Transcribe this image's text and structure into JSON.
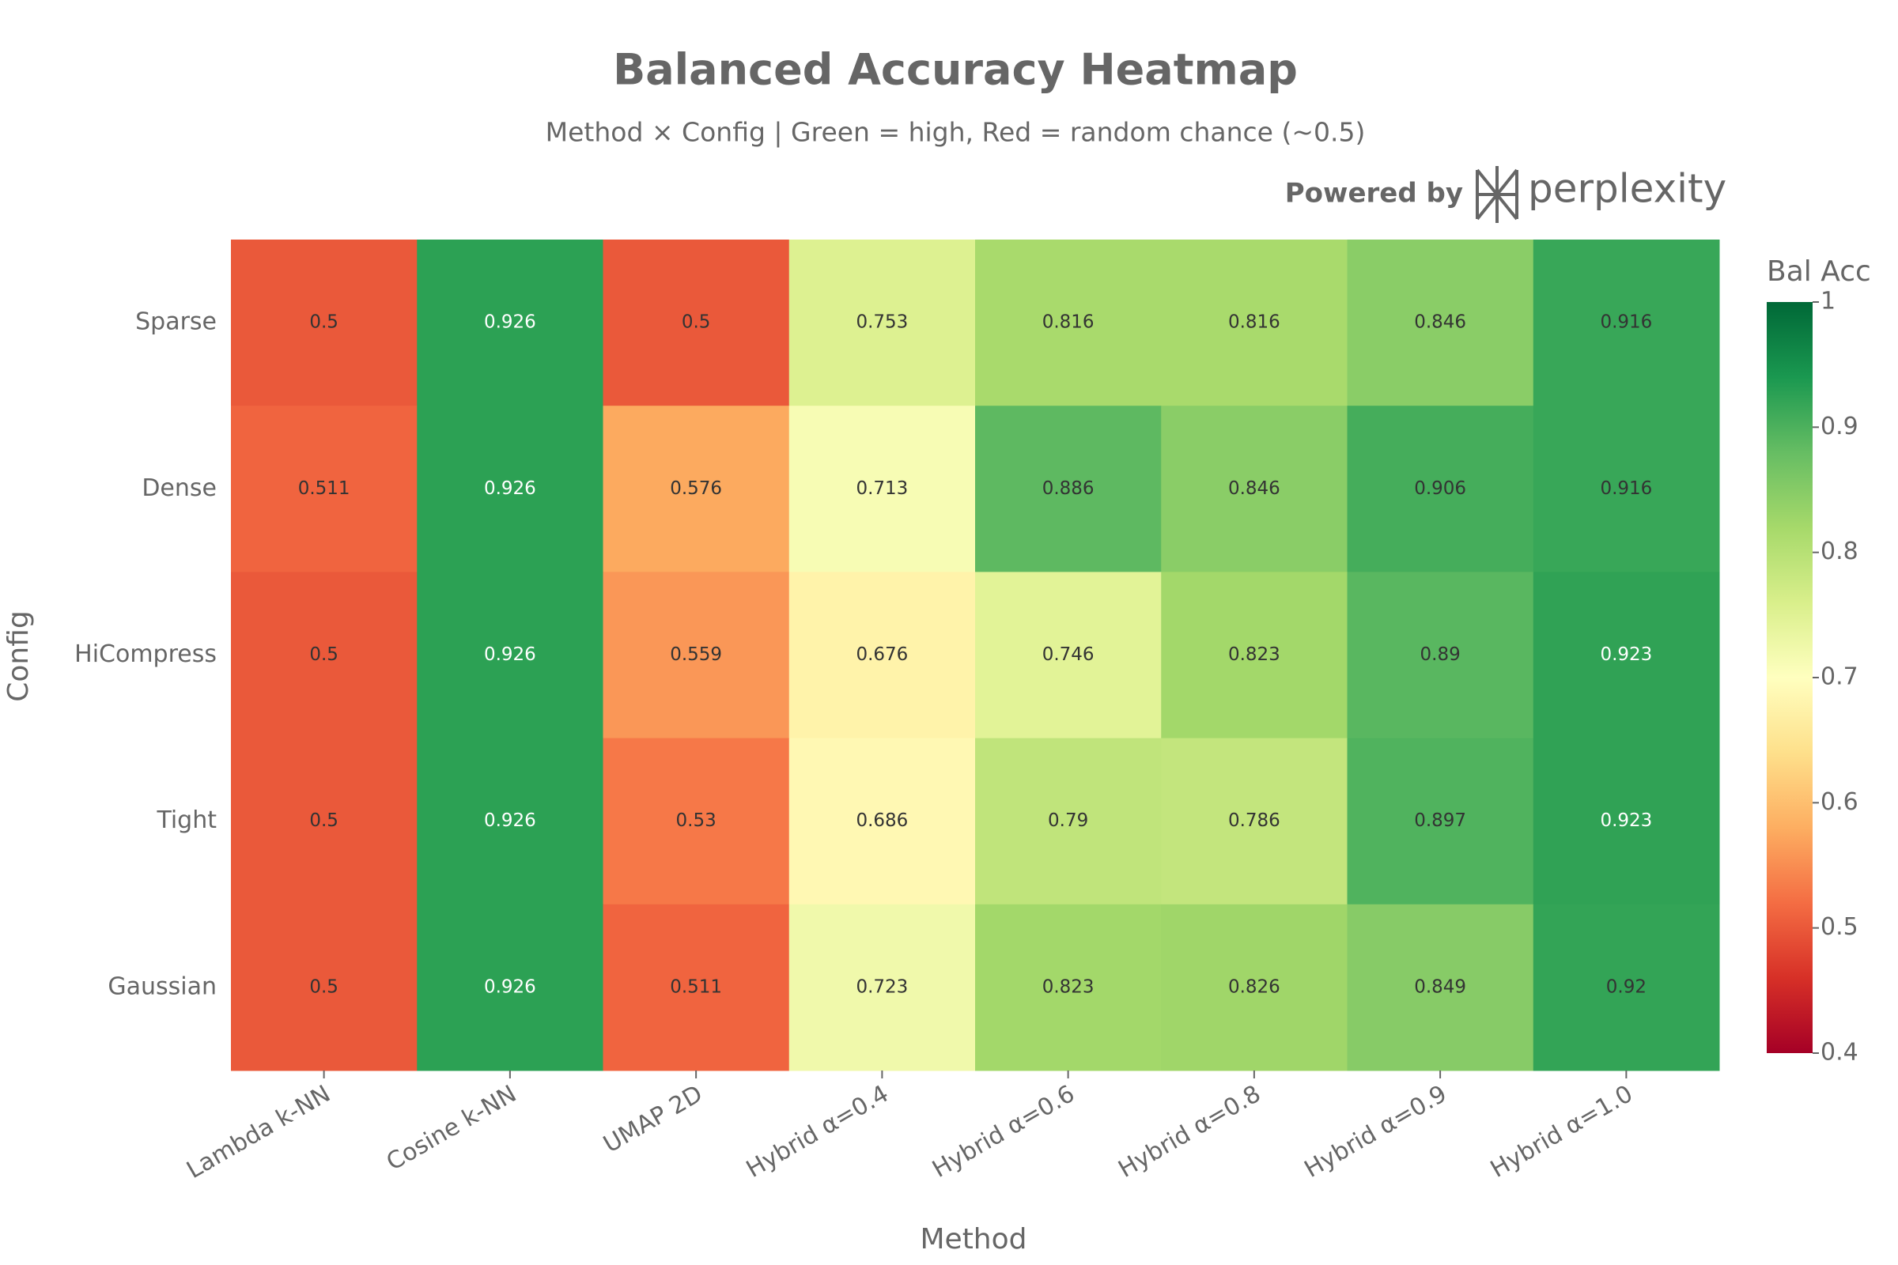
{
  "chart_data": {
    "type": "heatmap",
    "title": "Balanced Accuracy Heatmap",
    "subtitle": "Method × Config | Green = high, Red = random chance (~0.5)",
    "watermark": {
      "prefix": "Powered by",
      "brand": "perplexity"
    },
    "x_label": "Method",
    "y_label": "Config",
    "x": [
      "Lambda k-NN",
      "Cosine k-NN",
      "UMAP 2D",
      "Hybrid α=0.4",
      "Hybrid α=0.6",
      "Hybrid α=0.8",
      "Hybrid α=0.9",
      "Hybrid α=1.0"
    ],
    "y": [
      "Sparse",
      "Dense",
      "HiCompress",
      "Tight",
      "Gaussian"
    ],
    "z": [
      [
        0.5,
        0.926,
        0.5,
        0.753,
        0.816,
        0.816,
        0.846,
        0.916
      ],
      [
        0.511,
        0.926,
        0.576,
        0.713,
        0.886,
        0.846,
        0.906,
        0.916
      ],
      [
        0.5,
        0.926,
        0.559,
        0.676,
        0.746,
        0.823,
        0.89,
        0.923
      ],
      [
        0.5,
        0.926,
        0.53,
        0.686,
        0.79,
        0.786,
        0.897,
        0.923
      ],
      [
        0.5,
        0.926,
        0.511,
        0.723,
        0.823,
        0.826,
        0.849,
        0.92
      ]
    ],
    "colorscale": "RdYlGn",
    "colorbar_title": "Bal Acc",
    "zlim": [
      0.4,
      1
    ],
    "zticks": [
      0.4,
      0.5,
      0.6,
      0.7,
      0.8,
      0.9,
      1
    ]
  }
}
